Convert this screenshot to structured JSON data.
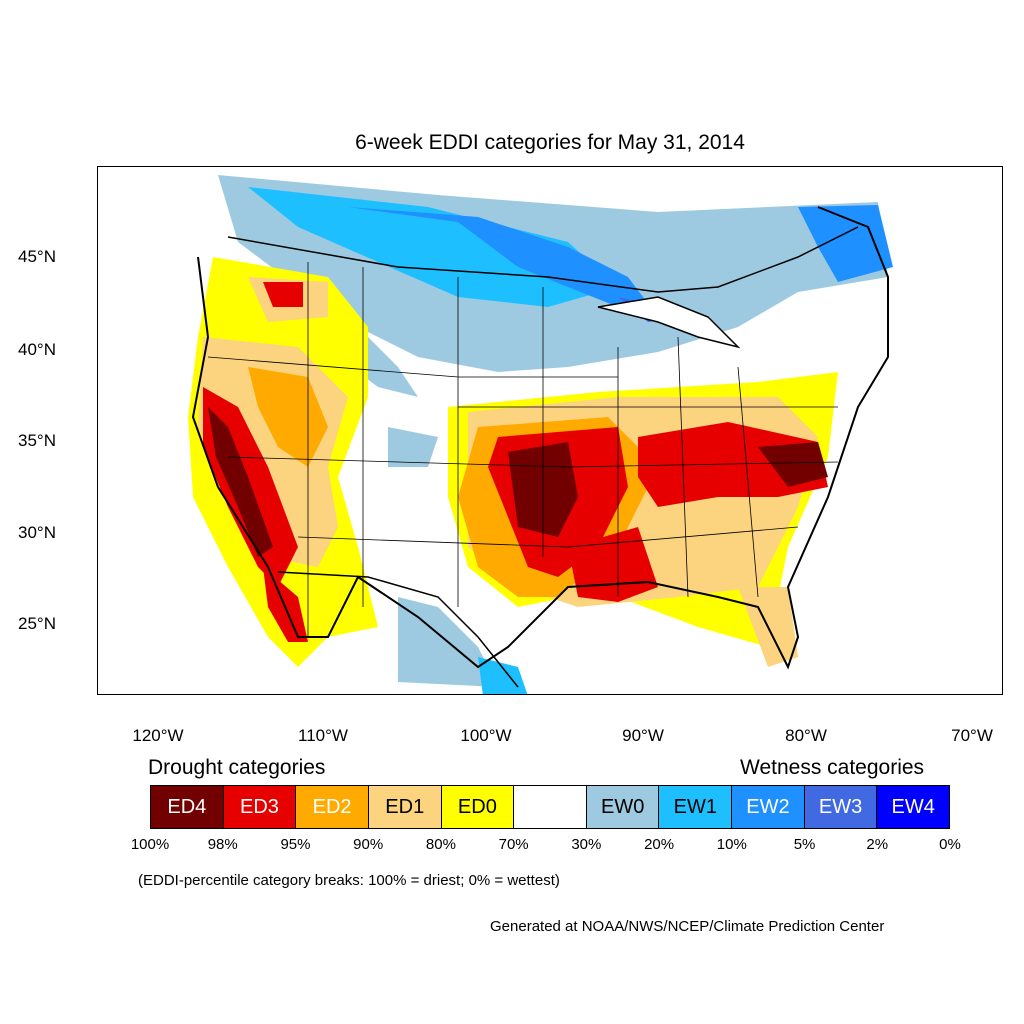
{
  "title": "6-week EDDI categories for May 31, 2014",
  "lat_labels": [
    "45°N",
    "40°N",
    "35°N",
    "30°N",
    "25°N"
  ],
  "lon_labels": [
    "120°W",
    "110°W",
    "100°W",
    "90°W",
    "80°W",
    "70°W"
  ],
  "legend": {
    "drought_heading": "Drought categories",
    "wetness_heading": "Wetness categories",
    "categories": [
      {
        "label": "ED4",
        "color": "#730000",
        "text_color": "#ffffff"
      },
      {
        "label": "ED3",
        "color": "#e60000",
        "text_color": "#ffffff"
      },
      {
        "label": "ED2",
        "color": "#ffaa00",
        "text_color": "#ffffff"
      },
      {
        "label": "ED1",
        "color": "#fcd37f",
        "text_color": "#000000"
      },
      {
        "label": "ED0",
        "color": "#ffff00",
        "text_color": "#000000"
      },
      {
        "label": "",
        "color": "#ffffff",
        "text_color": "#000000"
      },
      {
        "label": "EW0",
        "color": "#9ecae1",
        "text_color": "#000000"
      },
      {
        "label": "EW1",
        "color": "#1ebfff",
        "text_color": "#000000"
      },
      {
        "label": "EW2",
        "color": "#1e90ff",
        "text_color": "#ffffff"
      },
      {
        "label": "EW3",
        "color": "#4169e1",
        "text_color": "#ffffff"
      },
      {
        "label": "EW4",
        "color": "#0000ff",
        "text_color": "#ffffff"
      }
    ],
    "percent_breaks": [
      "100%",
      "98%",
      "95%",
      "90%",
      "80%",
      "70%",
      "30%",
      "20%",
      "10%",
      "5%",
      "2%",
      "0%"
    ]
  },
  "note": "(EDDI-percentile category breaks: 100% = driest; 0% = wettest)",
  "credit": "Generated at NOAA/NWS/NCEP/Climate Prediction Center"
}
